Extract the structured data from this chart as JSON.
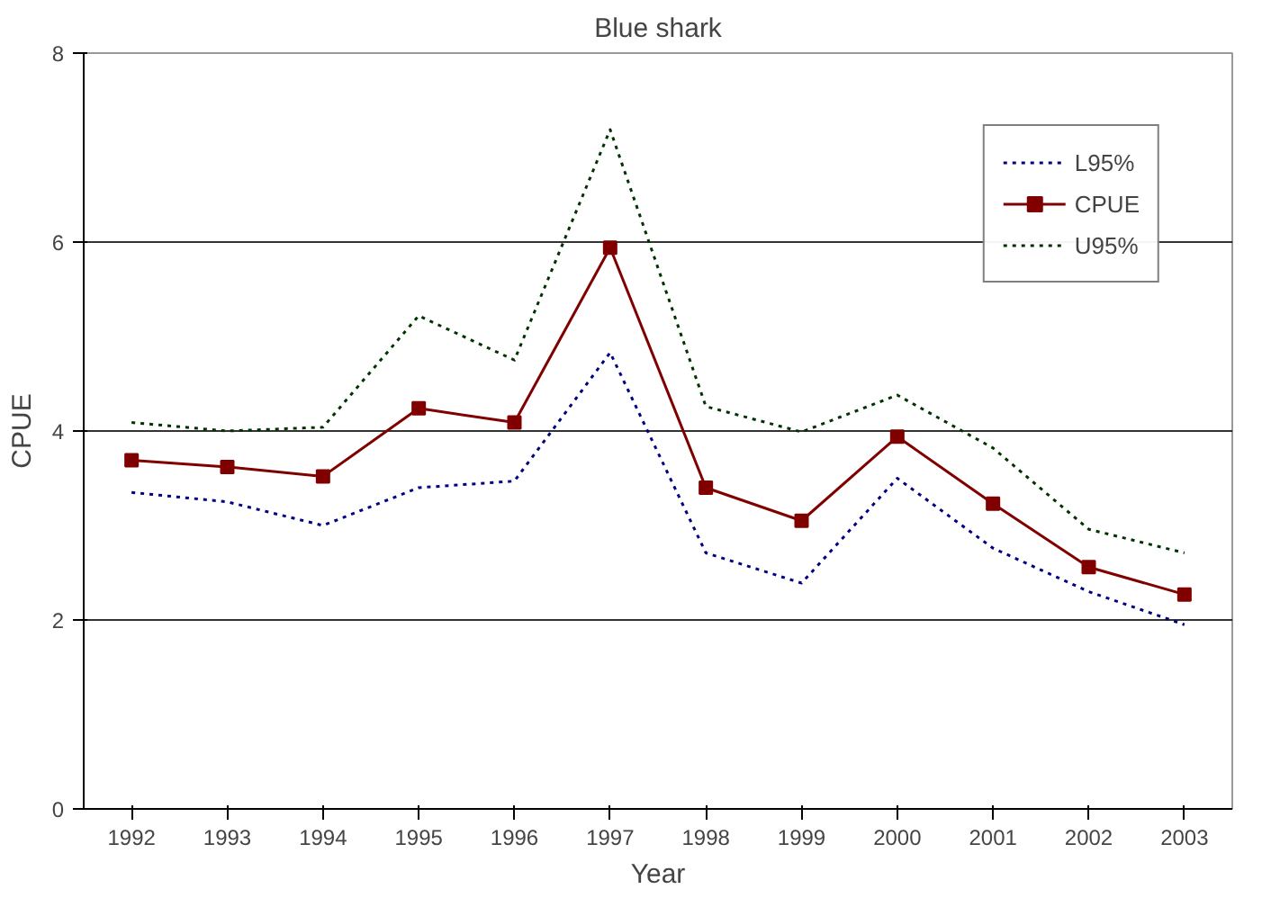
{
  "chart_data": {
    "type": "line",
    "title": "Blue shark",
    "xlabel": "Year",
    "ylabel": "CPUE",
    "categories": [
      "1992",
      "1993",
      "1994",
      "1995",
      "1996",
      "1997",
      "1998",
      "1999",
      "2000",
      "2001",
      "2002",
      "2003"
    ],
    "series": [
      {
        "name": "L95%",
        "color": "#000080",
        "line_style": "dotted",
        "marker": "none",
        "values": [
          3.35,
          3.25,
          3.0,
          3.4,
          3.47,
          4.83,
          2.71,
          2.39,
          3.5,
          2.76,
          2.3,
          1.95
        ]
      },
      {
        "name": "CPUE",
        "color": "#800000",
        "line_style": "solid",
        "marker": "square",
        "values": [
          3.69,
          3.62,
          3.52,
          4.24,
          4.09,
          5.94,
          3.4,
          3.05,
          3.94,
          3.23,
          2.56,
          2.27
        ]
      },
      {
        "name": "U95%",
        "color": "#003300",
        "line_style": "dotted",
        "marker": "none",
        "values": [
          4.09,
          4.0,
          4.04,
          5.22,
          4.75,
          7.19,
          4.26,
          3.99,
          4.38,
          3.82,
          2.96,
          2.71
        ]
      }
    ],
    "ylim": [
      0,
      8
    ],
    "yticks": [
      0,
      2,
      4,
      6,
      8
    ],
    "grid": "y",
    "legend": "top right"
  }
}
